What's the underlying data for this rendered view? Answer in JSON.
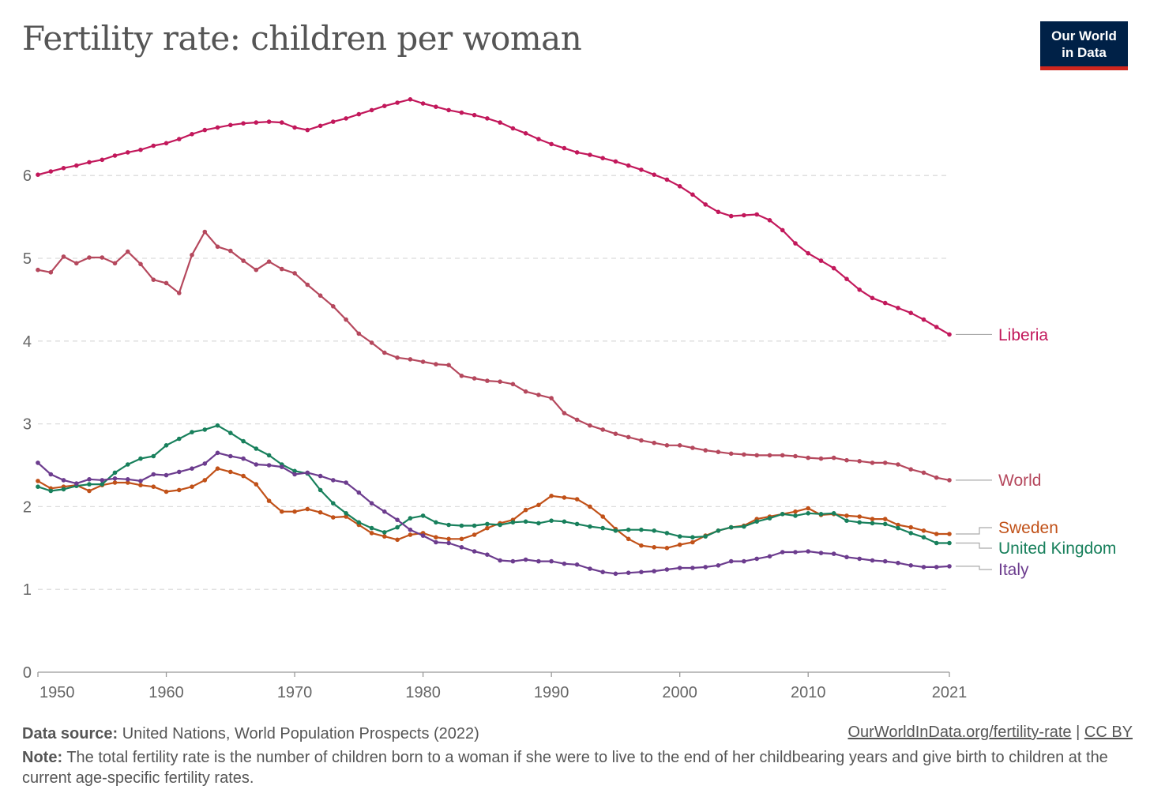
{
  "title": "Fertility rate: children per woman",
  "logo": {
    "line1": "Our World",
    "line2": "in Data"
  },
  "footer": {
    "source_label": "Data source:",
    "source_text": "United Nations, World Population Prospects (2022)",
    "link_url_text": "OurWorldInData.org/fertility-rate",
    "separator": "|",
    "license": "CC BY",
    "note_label": "Note:",
    "note_text": "The total fertility rate is the number of children born to a woman if she were to live to the end of her childbearing years and give birth to children at the current age-specific fertility rates."
  },
  "chart_data": {
    "type": "line",
    "title": "Fertility rate: children per woman",
    "xlabel": "",
    "ylabel": "",
    "xlim": [
      1950,
      2021
    ],
    "ylim": [
      0,
      7
    ],
    "x_ticks": [
      "1950",
      "1960",
      "1970",
      "1980",
      "1990",
      "2000",
      "2010",
      "2021"
    ],
    "y_ticks": [
      "0",
      "1",
      "2",
      "3",
      "4",
      "5",
      "6"
    ],
    "grid": "horizontal dashed",
    "legend": "inline labels at line ends (right)",
    "x": [
      1950,
      1951,
      1952,
      1953,
      1954,
      1955,
      1956,
      1957,
      1958,
      1959,
      1960,
      1961,
      1962,
      1963,
      1964,
      1965,
      1966,
      1967,
      1968,
      1969,
      1970,
      1971,
      1972,
      1973,
      1974,
      1975,
      1976,
      1977,
      1978,
      1979,
      1980,
      1981,
      1982,
      1983,
      1984,
      1985,
      1986,
      1987,
      1988,
      1989,
      1990,
      1991,
      1992,
      1993,
      1994,
      1995,
      1996,
      1997,
      1998,
      1999,
      2000,
      2001,
      2002,
      2003,
      2004,
      2005,
      2006,
      2007,
      2008,
      2009,
      2010,
      2011,
      2012,
      2013,
      2014,
      2015,
      2016,
      2017,
      2018,
      2019,
      2020,
      2021
    ],
    "series": [
      {
        "name": "Liberia",
        "color": "#c2185b",
        "values": [
          6.01,
          6.05,
          6.09,
          6.12,
          6.16,
          6.19,
          6.24,
          6.28,
          6.31,
          6.36,
          6.39,
          6.44,
          6.5,
          6.55,
          6.58,
          6.61,
          6.63,
          6.64,
          6.65,
          6.64,
          6.58,
          6.55,
          6.6,
          6.65,
          6.69,
          6.74,
          6.79,
          6.84,
          6.88,
          6.92,
          6.87,
          6.83,
          6.79,
          6.76,
          6.73,
          6.69,
          6.64,
          6.57,
          6.51,
          6.44,
          6.38,
          6.33,
          6.28,
          6.25,
          6.21,
          6.17,
          6.12,
          6.07,
          6.01,
          5.95,
          5.87,
          5.77,
          5.65,
          5.56,
          5.51,
          5.52,
          5.53,
          5.46,
          5.34,
          5.18,
          5.06,
          4.97,
          4.88,
          4.75,
          4.62,
          4.52,
          4.46,
          4.4,
          4.34,
          4.26,
          4.17,
          4.08
        ]
      },
      {
        "name": "World",
        "color": "#b5485d",
        "values": [
          4.86,
          4.83,
          5.02,
          4.94,
          5.01,
          5.01,
          4.94,
          5.08,
          4.93,
          4.74,
          4.7,
          4.58,
          5.04,
          5.32,
          5.14,
          5.09,
          4.97,
          4.86,
          4.96,
          4.87,
          4.82,
          4.68,
          4.55,
          4.42,
          4.26,
          4.09,
          3.98,
          3.86,
          3.8,
          3.78,
          3.75,
          3.72,
          3.71,
          3.58,
          3.55,
          3.52,
          3.51,
          3.48,
          3.39,
          3.35,
          3.31,
          3.13,
          3.05,
          2.98,
          2.93,
          2.88,
          2.84,
          2.8,
          2.77,
          2.74,
          2.74,
          2.71,
          2.68,
          2.66,
          2.64,
          2.63,
          2.62,
          2.62,
          2.62,
          2.61,
          2.59,
          2.58,
          2.59,
          2.56,
          2.55,
          2.53,
          2.53,
          2.51,
          2.45,
          2.41,
          2.35,
          2.32
        ]
      },
      {
        "name": "Sweden",
        "color": "#c15118",
        "values": [
          2.31,
          2.22,
          2.24,
          2.26,
          2.19,
          2.26,
          2.29,
          2.29,
          2.26,
          2.24,
          2.18,
          2.2,
          2.24,
          2.32,
          2.46,
          2.42,
          2.37,
          2.27,
          2.07,
          1.94,
          1.94,
          1.97,
          1.93,
          1.87,
          1.88,
          1.78,
          1.68,
          1.64,
          1.6,
          1.66,
          1.68,
          1.63,
          1.61,
          1.61,
          1.66,
          1.74,
          1.8,
          1.84,
          1.96,
          2.02,
          2.13,
          2.11,
          2.09,
          2.0,
          1.88,
          1.73,
          1.61,
          1.53,
          1.51,
          1.5,
          1.54,
          1.57,
          1.65,
          1.71,
          1.75,
          1.77,
          1.85,
          1.88,
          1.91,
          1.94,
          1.98,
          1.9,
          1.91,
          1.89,
          1.88,
          1.85,
          1.85,
          1.78,
          1.75,
          1.71,
          1.67,
          1.67
        ]
      },
      {
        "name": "United Kingdom",
        "color": "#18805c",
        "values": [
          2.24,
          2.19,
          2.21,
          2.25,
          2.27,
          2.27,
          2.41,
          2.51,
          2.58,
          2.61,
          2.74,
          2.82,
          2.9,
          2.93,
          2.98,
          2.89,
          2.79,
          2.7,
          2.62,
          2.51,
          2.43,
          2.4,
          2.2,
          2.04,
          1.92,
          1.81,
          1.74,
          1.69,
          1.75,
          1.86,
          1.89,
          1.81,
          1.78,
          1.77,
          1.77,
          1.79,
          1.78,
          1.81,
          1.82,
          1.8,
          1.83,
          1.82,
          1.79,
          1.76,
          1.74,
          1.71,
          1.72,
          1.72,
          1.71,
          1.68,
          1.64,
          1.63,
          1.64,
          1.71,
          1.75,
          1.76,
          1.82,
          1.86,
          1.91,
          1.89,
          1.92,
          1.91,
          1.92,
          1.83,
          1.81,
          1.8,
          1.79,
          1.74,
          1.68,
          1.63,
          1.56,
          1.56
        ]
      },
      {
        "name": "Italy",
        "color": "#6c3c8e",
        "values": [
          2.53,
          2.39,
          2.32,
          2.28,
          2.33,
          2.32,
          2.34,
          2.33,
          2.31,
          2.39,
          2.38,
          2.42,
          2.46,
          2.52,
          2.65,
          2.61,
          2.58,
          2.51,
          2.5,
          2.48,
          2.39,
          2.41,
          2.37,
          2.32,
          2.29,
          2.17,
          2.04,
          1.94,
          1.84,
          1.72,
          1.65,
          1.57,
          1.56,
          1.51,
          1.46,
          1.42,
          1.35,
          1.34,
          1.36,
          1.34,
          1.34,
          1.31,
          1.3,
          1.25,
          1.21,
          1.19,
          1.2,
          1.21,
          1.22,
          1.24,
          1.26,
          1.26,
          1.27,
          1.29,
          1.34,
          1.34,
          1.37,
          1.4,
          1.45,
          1.45,
          1.46,
          1.44,
          1.43,
          1.39,
          1.37,
          1.35,
          1.34,
          1.32,
          1.29,
          1.27,
          1.27,
          1.28
        ]
      }
    ]
  }
}
